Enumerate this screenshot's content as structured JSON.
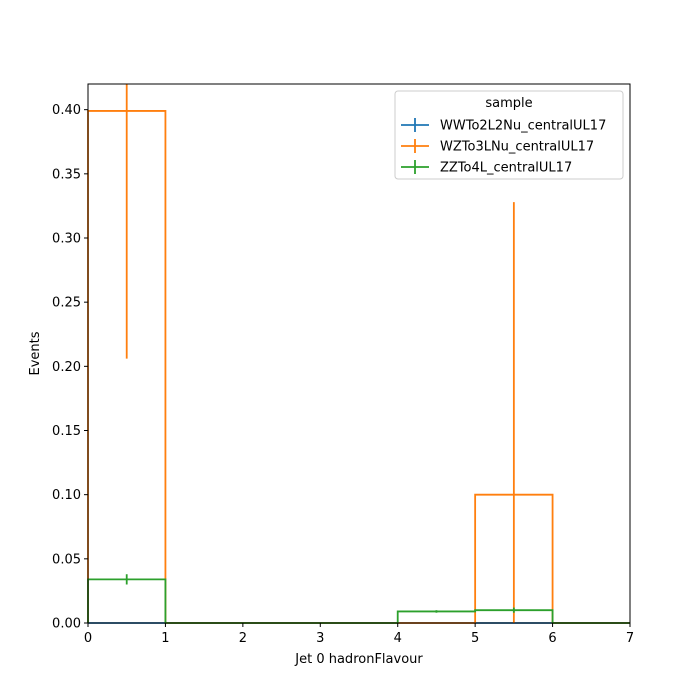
{
  "chart_data": {
    "type": "histogram",
    "title": "",
    "xlabel": "Jet 0 hadronFlavour",
    "ylabel": "Events",
    "xlim": [
      0,
      7
    ],
    "ylim": [
      0,
      0.42
    ],
    "grid": false,
    "x_ticks": [
      0,
      1,
      2,
      3,
      4,
      5,
      6,
      7
    ],
    "x_tick_labels": [
      "0",
      "1",
      "2",
      "3",
      "4",
      "5",
      "6",
      "7"
    ],
    "y_ticks": [
      0,
      0.05,
      0.1,
      0.15,
      0.2,
      0.25,
      0.3,
      0.35,
      0.4
    ],
    "y_tick_labels": [
      "0.00",
      "0.05",
      "0.10",
      "0.15",
      "0.20",
      "0.25",
      "0.30",
      "0.35",
      "0.40"
    ],
    "bin_edges": [
      0,
      1,
      2,
      3,
      4,
      5,
      6,
      7
    ],
    "legend": {
      "title": "sample",
      "placement": "top-right"
    },
    "series": [
      {
        "name": "WWTo2L2Nu_centralUL17",
        "color": "#1f77b4",
        "values": [
          0,
          0,
          0,
          0,
          0,
          0,
          0
        ],
        "errors": [
          0,
          0,
          0,
          0,
          0,
          0,
          0
        ]
      },
      {
        "name": "WZTo3LNu_centralUL17",
        "color": "#ff7f0e",
        "values": [
          0.399,
          0,
          0,
          0,
          0,
          0.1,
          0
        ],
        "errors": [
          0.193,
          0,
          0,
          0,
          0,
          0.228,
          0
        ]
      },
      {
        "name": "ZZTo4L_centralUL17",
        "color": "#2ca02c",
        "values": [
          0.034,
          0,
          0,
          0,
          0.009,
          0.01,
          0
        ],
        "errors": [
          0.004,
          0,
          0,
          0,
          0.001,
          0.002,
          0
        ]
      }
    ]
  }
}
